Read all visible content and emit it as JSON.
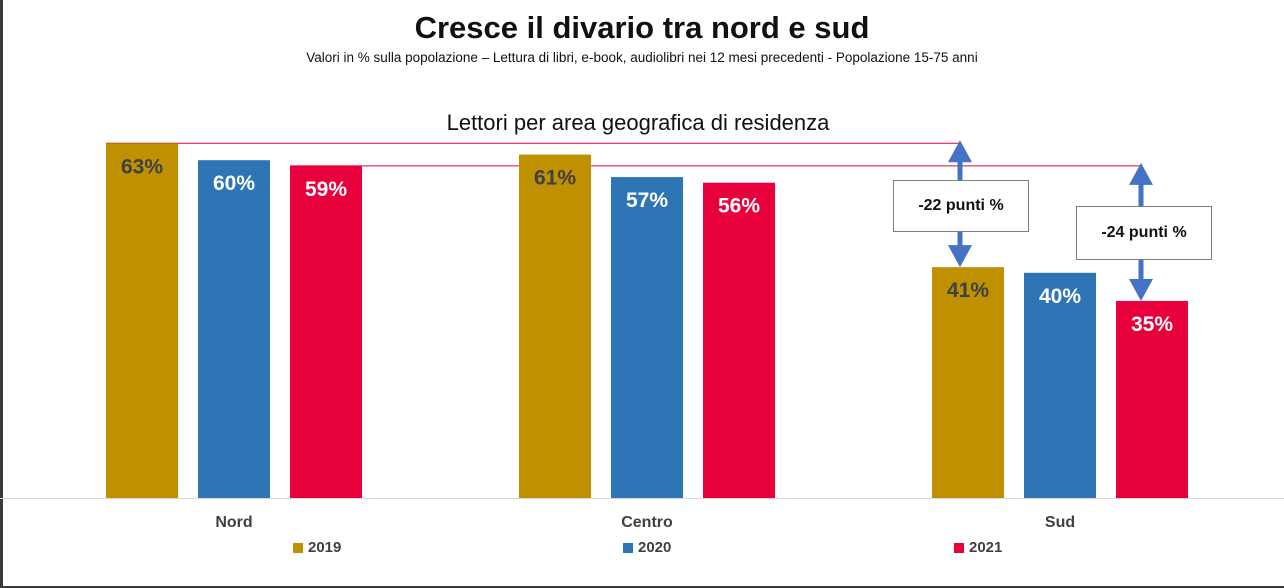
{
  "header": {
    "title": "Cresce il divario tra nord e sud",
    "subtitle": "Valori in % sulla popolazione – Lettura di libri, e-book, audiolibri nei 12 mesi precedenti - Popolazione 15-75 anni"
  },
  "chart_data": {
    "type": "bar",
    "title": "Lettori per area geografica di residenza",
    "categories": [
      "Nord",
      "Centro",
      "Sud"
    ],
    "series": [
      {
        "name": "2019",
        "values": [
          63,
          61,
          41
        ],
        "labels": [
          "63%",
          "61%",
          "41%"
        ],
        "color": "#BF9000",
        "label_color": "#404040"
      },
      {
        "name": "2020",
        "values": [
          60,
          57,
          40
        ],
        "labels": [
          "60%",
          "57%",
          "40%"
        ],
        "color": "#2E75B6",
        "label_color": "#FFFFFF"
      },
      {
        "name": "2021",
        "values": [
          59,
          56,
          35
        ],
        "labels": [
          "59%",
          "56%",
          "35%"
        ],
        "color": "#E8003D",
        "label_color": "#FFFFFF"
      }
    ],
    "ylim": [
      0,
      63
    ],
    "xlabel": "",
    "ylabel": "",
    "grid": false,
    "legend": "bottom",
    "annotations": [
      {
        "text": "-22 punti %",
        "from_series": "2019",
        "category": "Sud",
        "reference_category": "Nord",
        "gap": -22
      },
      {
        "text": "-24 punti %",
        "from_series": "2021",
        "category": "Sud",
        "reference_category": "Nord",
        "gap": -24
      }
    ],
    "reference_line_color": "#E8003D",
    "arrow_color": "#4472C4"
  }
}
